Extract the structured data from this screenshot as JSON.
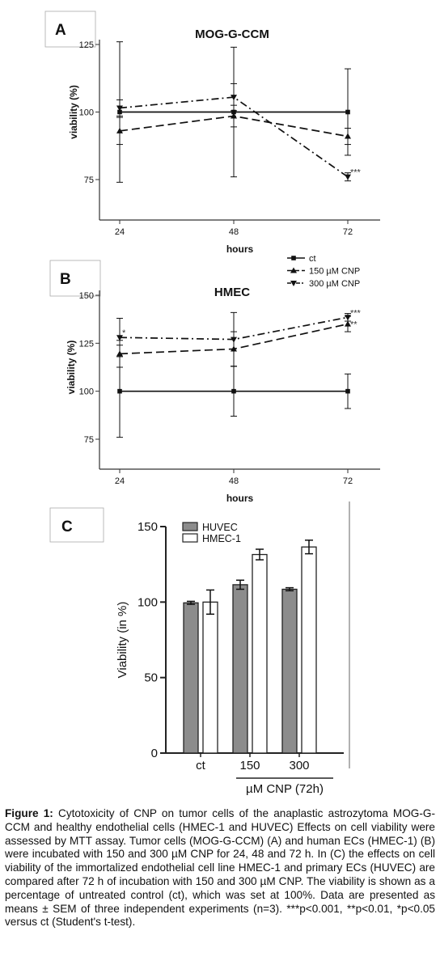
{
  "chart_data": [
    {
      "panel": "A",
      "type": "line",
      "title": "MOG-G-CCM",
      "xlabel": "hours",
      "ylabel": "viability (%)",
      "x": [
        24,
        48,
        72
      ],
      "xticks": [
        "24",
        "48",
        "72"
      ],
      "yticks": [
        "75",
        "100",
        "125"
      ],
      "ylim": [
        75,
        125
      ],
      "series": [
        {
          "name": "ct",
          "values": [
            100,
            100,
            100
          ],
          "err": [
            26,
            24,
            16
          ],
          "style": "solid",
          "marker": "square"
        },
        {
          "name": "150 µM CNP",
          "values": [
            93,
            98.5,
            91
          ],
          "err": [
            5,
            4,
            3
          ],
          "style": "dash",
          "marker": "triangle-up"
        },
        {
          "name": "300 µM CNP",
          "values": [
            101.5,
            105.5,
            76
          ],
          "err": [
            3,
            5,
            1.5
          ],
          "style": "dashdot",
          "marker": "triangle-down"
        }
      ],
      "annotations": [
        {
          "text": "***",
          "series": 2,
          "x": 72
        }
      ]
    },
    {
      "panel": "B",
      "type": "line",
      "title": "HMEC",
      "xlabel": "hours",
      "ylabel": "viability (%)",
      "x": [
        24,
        48,
        72
      ],
      "xticks": [
        "24",
        "48",
        "72"
      ],
      "yticks": [
        "75",
        "100",
        "125",
        "150"
      ],
      "ylim": [
        75,
        150
      ],
      "legend": "top-right",
      "series": [
        {
          "name": "ct",
          "values": [
            100,
            100,
            100
          ],
          "err": [
            24,
            13,
            9
          ],
          "style": "solid",
          "marker": "square"
        },
        {
          "name": "150 µM CNP",
          "values": [
            119.5,
            122,
            135
          ],
          "err": [
            7,
            9,
            4
          ],
          "style": "dash",
          "marker": "triangle-up"
        },
        {
          "name": "300 µM CNP",
          "values": [
            128,
            127,
            138.5
          ],
          "err": [
            10,
            14,
            2
          ],
          "style": "dashdot",
          "marker": "triangle-down"
        }
      ],
      "annotations": [
        {
          "text": "*",
          "series": 2,
          "x": 24
        },
        {
          "text": "***",
          "series": 2,
          "x": 72
        },
        {
          "text": "**",
          "series": 1,
          "x": 72
        }
      ]
    },
    {
      "panel": "C",
      "type": "bar",
      "xlabel": "µM CNP (72h)",
      "ylabel": "Viability (in %)",
      "categories": [
        "ct",
        "150",
        "300"
      ],
      "yticks": [
        "0",
        "50",
        "100",
        "150"
      ],
      "ylim": [
        0,
        150
      ],
      "legend": "top-left",
      "series": [
        {
          "name": "HUVEC",
          "values": [
            99.5,
            111.5,
            108.5
          ],
          "err": [
            1,
            3,
            1
          ],
          "color": "#8c8c8c"
        },
        {
          "name": "HMEC-1",
          "values": [
            100,
            131.5,
            136.5
          ],
          "err": [
            8,
            3.5,
            4.5
          ],
          "color": "#ffffff"
        }
      ]
    }
  ],
  "caption": {
    "label": "Figure 1:",
    "text": "Cytotoxicity of CNP on tumor cells of the anaplastic astrozytoma MOG-G-CCM and healthy endothelial cells (HMEC-1 and HUVEC) Effects on cell viability were assessed by MTT assay. Tumor cells (MOG-G-CCM) (A) and human ECs (HMEC-1) (B) were incubated with 150 and 300 µM CNP for 24, 48 and 72 h. In (C) the effects on cell viability of the immortalized endothelial cell line HMEC-1 and primary ECs (HUVEC) are compared after 72 h of incubation with 150 and 300 µM CNP. The viability is shown as a percentage of untreated control (ct), which was set at 100%. Data are presented as means ± SEM of three independent experiments (n=3). ***p<0.001, **p<0.01, *p<0.05 versus ct (Student's t-test)."
  }
}
